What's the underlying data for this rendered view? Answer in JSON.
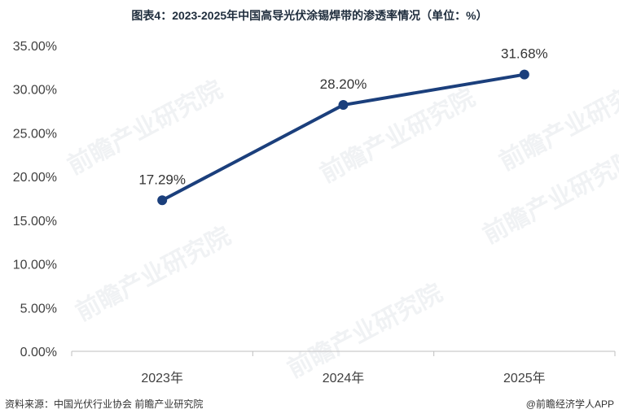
{
  "title": "图表4：2023-2025年中国高导光伏涂锡焊带的渗透率情况（单位：%）",
  "source": "资料来源：中国光伏行业协会 前瞻产业研究院",
  "credit": "@前瞻经济学人APP",
  "watermark": "前瞻产业研究院",
  "chart_data": {
    "type": "line",
    "title": "图表4：2023-2025年中国高导光伏涂锡焊带的渗透率情况（单位：%）",
    "categories": [
      "2023年",
      "2024年",
      "2025年"
    ],
    "series": [
      {
        "values": [
          17.29,
          28.2,
          31.68
        ],
        "labels": [
          "17.29%",
          "28.20%",
          "31.68%"
        ],
        "color": "#1b3f7c"
      }
    ],
    "ylim": [
      0,
      35
    ],
    "yticks": [
      0,
      5,
      10,
      15,
      20,
      25,
      30,
      35
    ],
    "ytick_labels": [
      "0.00%",
      "5.00%",
      "10.00%",
      "15.00%",
      "20.00%",
      "25.00%",
      "30.00%",
      "35.00%"
    ],
    "grid": false,
    "axis_color": "#bfbfbf"
  }
}
